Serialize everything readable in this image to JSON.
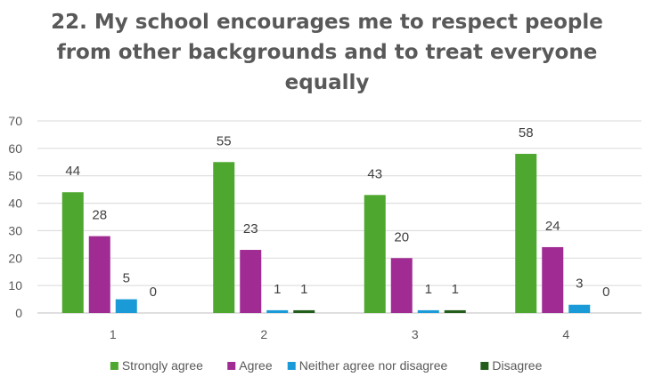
{
  "chart_data": {
    "type": "bar",
    "title_lines": [
      "22. My school encourages me to respect people",
      "from other backgrounds and to treat everyone",
      "equally"
    ],
    "categories": [
      "1",
      "2",
      "3",
      "4"
    ],
    "series": [
      {
        "name": "Strongly agree",
        "color": "#4EA72E",
        "values": [
          44,
          55,
          43,
          58
        ]
      },
      {
        "name": "Agree",
        "color": "#A02B93",
        "values": [
          28,
          23,
          20,
          24
        ]
      },
      {
        "name": "Neither agree nor disagree",
        "color": "#1A9AD6",
        "values": [
          5,
          1,
          1,
          3
        ]
      },
      {
        "name": "Disagree",
        "color": "#225D1B",
        "values": [
          0,
          1,
          1,
          0
        ]
      }
    ],
    "ylim": [
      0,
      70
    ],
    "yticks": [
      0,
      10,
      20,
      30,
      40,
      50,
      60,
      70
    ],
    "grid": true,
    "legend_position": "bottom",
    "data_labels": true
  }
}
